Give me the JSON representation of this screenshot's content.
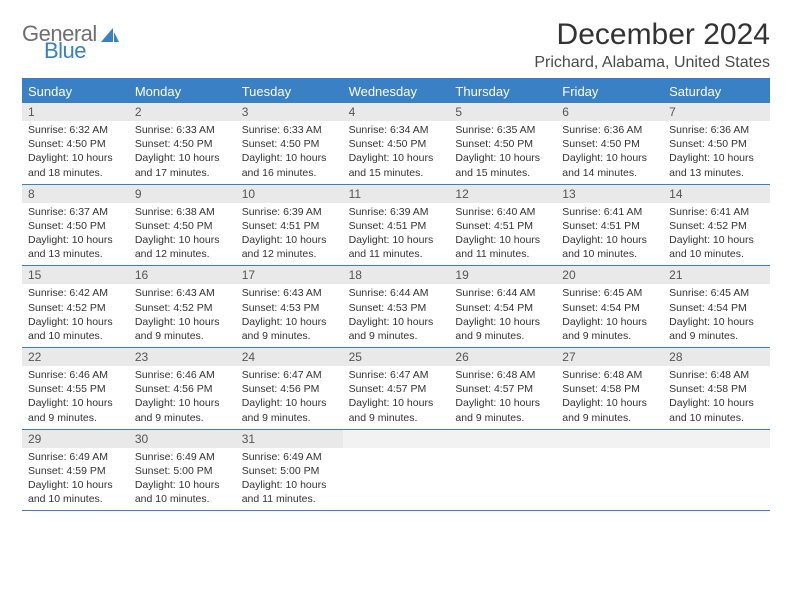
{
  "logo": {
    "line1": "General",
    "line2": "Blue",
    "icon_color": "#3a80c4",
    "text_gray": "#6f6f6f"
  },
  "title": "December 2024",
  "location": "Prichard, Alabama, United States",
  "colors": {
    "accent": "#3a80c4",
    "daynum_bg": "#e9e9e9",
    "text": "#333333"
  },
  "day_names": [
    "Sunday",
    "Monday",
    "Tuesday",
    "Wednesday",
    "Thursday",
    "Friday",
    "Saturday"
  ],
  "weeks": [
    [
      {
        "n": "1",
        "sr": "Sunrise: 6:32 AM",
        "ss": "Sunset: 4:50 PM",
        "d1": "Daylight: 10 hours",
        "d2": "and 18 minutes."
      },
      {
        "n": "2",
        "sr": "Sunrise: 6:33 AM",
        "ss": "Sunset: 4:50 PM",
        "d1": "Daylight: 10 hours",
        "d2": "and 17 minutes."
      },
      {
        "n": "3",
        "sr": "Sunrise: 6:33 AM",
        "ss": "Sunset: 4:50 PM",
        "d1": "Daylight: 10 hours",
        "d2": "and 16 minutes."
      },
      {
        "n": "4",
        "sr": "Sunrise: 6:34 AM",
        "ss": "Sunset: 4:50 PM",
        "d1": "Daylight: 10 hours",
        "d2": "and 15 minutes."
      },
      {
        "n": "5",
        "sr": "Sunrise: 6:35 AM",
        "ss": "Sunset: 4:50 PM",
        "d1": "Daylight: 10 hours",
        "d2": "and 15 minutes."
      },
      {
        "n": "6",
        "sr": "Sunrise: 6:36 AM",
        "ss": "Sunset: 4:50 PM",
        "d1": "Daylight: 10 hours",
        "d2": "and 14 minutes."
      },
      {
        "n": "7",
        "sr": "Sunrise: 6:36 AM",
        "ss": "Sunset: 4:50 PM",
        "d1": "Daylight: 10 hours",
        "d2": "and 13 minutes."
      }
    ],
    [
      {
        "n": "8",
        "sr": "Sunrise: 6:37 AM",
        "ss": "Sunset: 4:50 PM",
        "d1": "Daylight: 10 hours",
        "d2": "and 13 minutes."
      },
      {
        "n": "9",
        "sr": "Sunrise: 6:38 AM",
        "ss": "Sunset: 4:50 PM",
        "d1": "Daylight: 10 hours",
        "d2": "and 12 minutes."
      },
      {
        "n": "10",
        "sr": "Sunrise: 6:39 AM",
        "ss": "Sunset: 4:51 PM",
        "d1": "Daylight: 10 hours",
        "d2": "and 12 minutes."
      },
      {
        "n": "11",
        "sr": "Sunrise: 6:39 AM",
        "ss": "Sunset: 4:51 PM",
        "d1": "Daylight: 10 hours",
        "d2": "and 11 minutes."
      },
      {
        "n": "12",
        "sr": "Sunrise: 6:40 AM",
        "ss": "Sunset: 4:51 PM",
        "d1": "Daylight: 10 hours",
        "d2": "and 11 minutes."
      },
      {
        "n": "13",
        "sr": "Sunrise: 6:41 AM",
        "ss": "Sunset: 4:51 PM",
        "d1": "Daylight: 10 hours",
        "d2": "and 10 minutes."
      },
      {
        "n": "14",
        "sr": "Sunrise: 6:41 AM",
        "ss": "Sunset: 4:52 PM",
        "d1": "Daylight: 10 hours",
        "d2": "and 10 minutes."
      }
    ],
    [
      {
        "n": "15",
        "sr": "Sunrise: 6:42 AM",
        "ss": "Sunset: 4:52 PM",
        "d1": "Daylight: 10 hours",
        "d2": "and 10 minutes."
      },
      {
        "n": "16",
        "sr": "Sunrise: 6:43 AM",
        "ss": "Sunset: 4:52 PM",
        "d1": "Daylight: 10 hours",
        "d2": "and 9 minutes."
      },
      {
        "n": "17",
        "sr": "Sunrise: 6:43 AM",
        "ss": "Sunset: 4:53 PM",
        "d1": "Daylight: 10 hours",
        "d2": "and 9 minutes."
      },
      {
        "n": "18",
        "sr": "Sunrise: 6:44 AM",
        "ss": "Sunset: 4:53 PM",
        "d1": "Daylight: 10 hours",
        "d2": "and 9 minutes."
      },
      {
        "n": "19",
        "sr": "Sunrise: 6:44 AM",
        "ss": "Sunset: 4:54 PM",
        "d1": "Daylight: 10 hours",
        "d2": "and 9 minutes."
      },
      {
        "n": "20",
        "sr": "Sunrise: 6:45 AM",
        "ss": "Sunset: 4:54 PM",
        "d1": "Daylight: 10 hours",
        "d2": "and 9 minutes."
      },
      {
        "n": "21",
        "sr": "Sunrise: 6:45 AM",
        "ss": "Sunset: 4:54 PM",
        "d1": "Daylight: 10 hours",
        "d2": "and 9 minutes."
      }
    ],
    [
      {
        "n": "22",
        "sr": "Sunrise: 6:46 AM",
        "ss": "Sunset: 4:55 PM",
        "d1": "Daylight: 10 hours",
        "d2": "and 9 minutes."
      },
      {
        "n": "23",
        "sr": "Sunrise: 6:46 AM",
        "ss": "Sunset: 4:56 PM",
        "d1": "Daylight: 10 hours",
        "d2": "and 9 minutes."
      },
      {
        "n": "24",
        "sr": "Sunrise: 6:47 AM",
        "ss": "Sunset: 4:56 PM",
        "d1": "Daylight: 10 hours",
        "d2": "and 9 minutes."
      },
      {
        "n": "25",
        "sr": "Sunrise: 6:47 AM",
        "ss": "Sunset: 4:57 PM",
        "d1": "Daylight: 10 hours",
        "d2": "and 9 minutes."
      },
      {
        "n": "26",
        "sr": "Sunrise: 6:48 AM",
        "ss": "Sunset: 4:57 PM",
        "d1": "Daylight: 10 hours",
        "d2": "and 9 minutes."
      },
      {
        "n": "27",
        "sr": "Sunrise: 6:48 AM",
        "ss": "Sunset: 4:58 PM",
        "d1": "Daylight: 10 hours",
        "d2": "and 9 minutes."
      },
      {
        "n": "28",
        "sr": "Sunrise: 6:48 AM",
        "ss": "Sunset: 4:58 PM",
        "d1": "Daylight: 10 hours",
        "d2": "and 10 minutes."
      }
    ],
    [
      {
        "n": "29",
        "sr": "Sunrise: 6:49 AM",
        "ss": "Sunset: 4:59 PM",
        "d1": "Daylight: 10 hours",
        "d2": "and 10 minutes."
      },
      {
        "n": "30",
        "sr": "Sunrise: 6:49 AM",
        "ss": "Sunset: 5:00 PM",
        "d1": "Daylight: 10 hours",
        "d2": "and 10 minutes."
      },
      {
        "n": "31",
        "sr": "Sunrise: 6:49 AM",
        "ss": "Sunset: 5:00 PM",
        "d1": "Daylight: 10 hours",
        "d2": "and 11 minutes."
      },
      null,
      null,
      null,
      null
    ]
  ]
}
